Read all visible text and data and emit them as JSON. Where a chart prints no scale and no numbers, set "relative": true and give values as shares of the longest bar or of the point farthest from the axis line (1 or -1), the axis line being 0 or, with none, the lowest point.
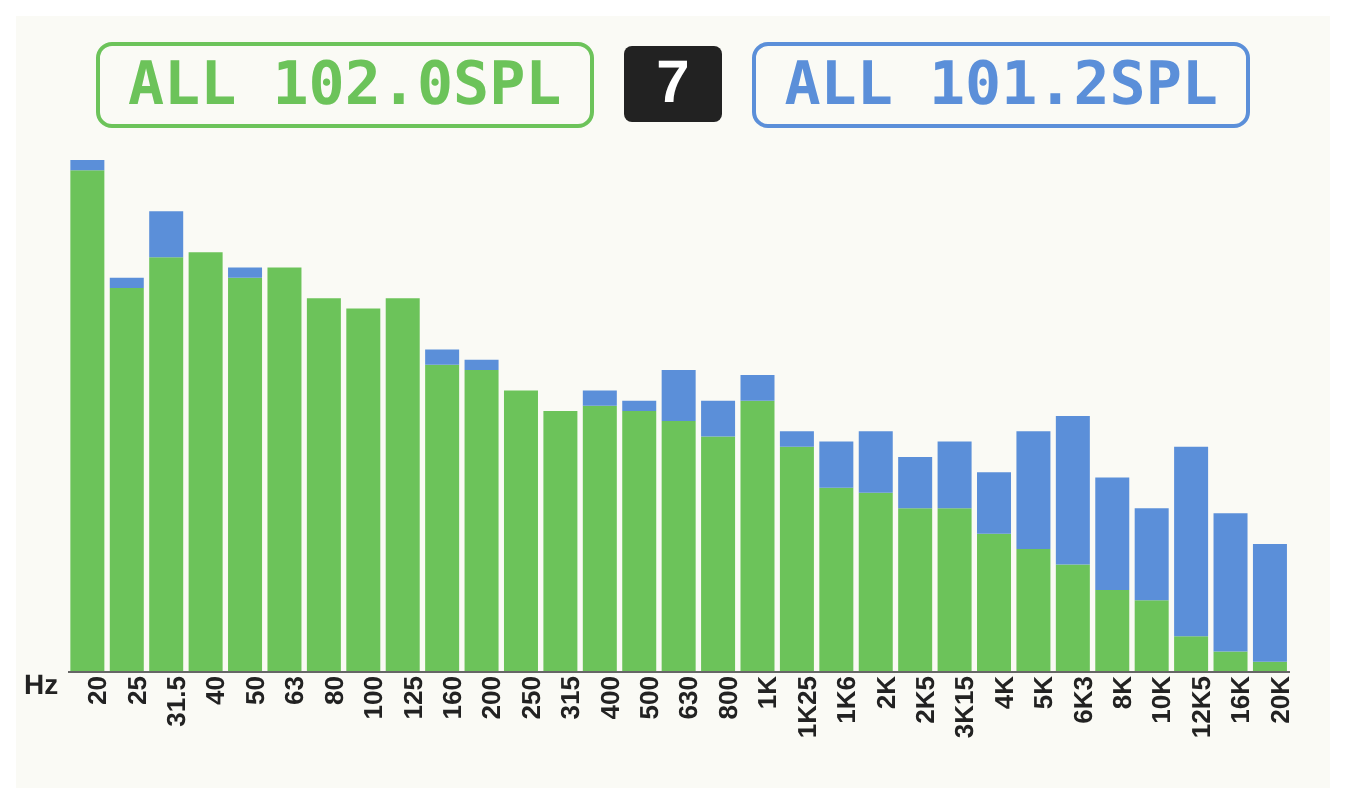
{
  "chart_data": {
    "type": "bar",
    "title": "7",
    "xlabel": "Hz",
    "relative": true,
    "legend": "top",
    "stacked": true,
    "categories": [
      "20",
      "25",
      "31.5",
      "40",
      "50",
      "63",
      "80",
      "100",
      "125",
      "160",
      "200",
      "250",
      "315",
      "400",
      "500",
      "630",
      "800",
      "1K",
      "1K25",
      "1K6",
      "2K",
      "2K5",
      "3K15",
      "4K",
      "5K",
      "6K3",
      "8K",
      "10K",
      "12K5",
      "16K",
      "20K"
    ],
    "series": [
      {
        "name": "ALL 102.0SPL",
        "color": "#6cc35a",
        "values": [
          0.98,
          0.75,
          0.81,
          0.82,
          0.77,
          0.79,
          0.73,
          0.71,
          0.73,
          0.6,
          0.59,
          0.55,
          0.51,
          0.52,
          0.51,
          0.49,
          0.46,
          0.53,
          0.44,
          0.36,
          0.35,
          0.32,
          0.32,
          0.27,
          0.24,
          0.21,
          0.16,
          0.14,
          0.07,
          0.04,
          0.02
        ]
      },
      {
        "name": "ALL 101.2SPL",
        "color": "#5b8fd9",
        "values": [
          0.02,
          0.02,
          0.09,
          null,
          0.02,
          null,
          null,
          null,
          null,
          0.03,
          0.02,
          null,
          null,
          0.03,
          0.02,
          0.1,
          0.07,
          0.05,
          0.03,
          0.09,
          0.12,
          0.1,
          0.13,
          0.12,
          0.23,
          0.29,
          0.22,
          0.18,
          0.37,
          0.27,
          0.23
        ]
      }
    ]
  }
}
